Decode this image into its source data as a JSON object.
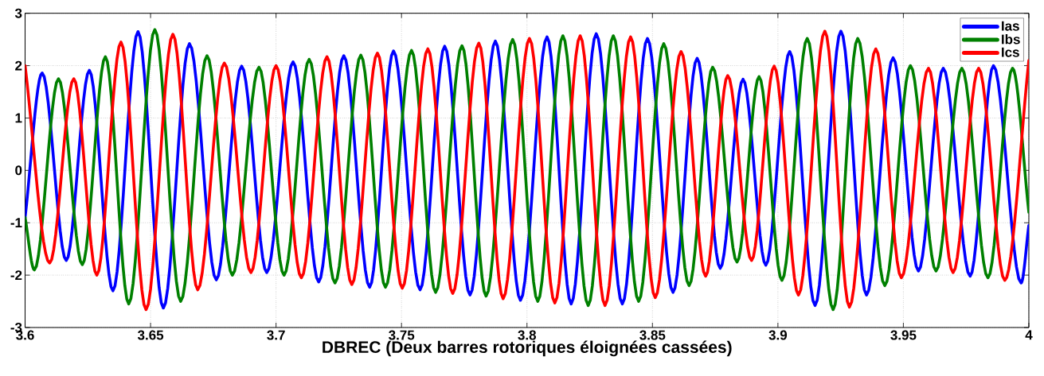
{
  "chart_data": {
    "type": "line",
    "xlabel": "DBREC (Deux barres rotoriques éloignées cassées)",
    "xlim": [
      3.6,
      4
    ],
    "ylim": [
      -3,
      3
    ],
    "xticks": [
      3.6,
      3.65,
      3.7,
      3.75,
      3.8,
      3.85,
      3.9,
      3.95,
      4
    ],
    "yticks": [
      -3,
      -2,
      -1,
      0,
      1,
      2,
      3
    ],
    "grid": true,
    "legend": "top right",
    "series": [
      {
        "name": "Ias",
        "color": "#0000ff",
        "x": [
          3.6,
          3.6068,
          3.6164,
          3.6256,
          3.635,
          3.645,
          3.6551,
          3.6655,
          3.6762,
          3.6863,
          3.6963,
          3.7068,
          3.717,
          3.727,
          3.7373,
          3.7468,
          3.7574,
          3.7672,
          3.7773,
          3.7874,
          3.7974,
          3.808,
          3.8176,
          3.8276,
          3.838,
          3.848,
          3.8582,
          3.8678,
          3.877,
          3.8861,
          3.8952,
          3.9047,
          3.9148,
          3.9251,
          3.9353,
          3.9459,
          3.956,
          3.9659,
          3.9766,
          3.9859,
          3.9969,
          4.0
        ],
        "values": [
          -0.9,
          1.86,
          -1.72,
          1.91,
          -2.3,
          2.65,
          -2.63,
          2.42,
          -2.09,
          1.99,
          -1.95,
          2.07,
          -2.13,
          2.19,
          -2.23,
          2.28,
          -2.28,
          2.37,
          -2.38,
          2.47,
          -2.48,
          2.55,
          -2.55,
          2.61,
          -2.55,
          2.52,
          -2.33,
          2.14,
          -1.87,
          1.74,
          -1.81,
          2.27,
          -2.58,
          2.66,
          -2.38,
          2.15,
          -1.92,
          1.95,
          -2.02,
          2.0,
          -2.15,
          -1.05
        ]
      },
      {
        "name": "Ibs",
        "color": "#008000",
        "x": [
          3.6,
          3.6037,
          3.6133,
          3.6228,
          3.632,
          3.6413,
          3.6517,
          3.662,
          3.6725,
          3.6826,
          3.6932,
          3.7032,
          3.7132,
          3.7235,
          3.7338,
          3.7436,
          3.754,
          3.7636,
          3.7741,
          3.7837,
          3.7943,
          3.8043,
          3.8143,
          3.8244,
          3.8344,
          3.8445,
          3.8545,
          3.8646,
          3.874,
          3.8837,
          3.8925,
          3.9016,
          3.9117,
          3.922,
          3.9318,
          3.9426,
          3.9528,
          3.963,
          3.9733,
          3.9837,
          3.9935,
          4.0
        ],
        "values": [
          -0.9,
          -1.9,
          1.75,
          -1.8,
          2.17,
          -2.55,
          2.69,
          -2.5,
          2.19,
          -2.0,
          1.97,
          -2.0,
          2.12,
          -2.15,
          2.2,
          -2.23,
          2.29,
          -2.33,
          2.38,
          -2.4,
          2.5,
          -2.5,
          2.57,
          -2.58,
          2.57,
          -2.5,
          2.42,
          -2.2,
          1.97,
          -1.75,
          1.79,
          -2.1,
          2.52,
          -2.66,
          2.52,
          -2.2,
          2.0,
          -1.92,
          1.95,
          -2.05,
          1.95,
          -0.8
        ]
      },
      {
        "name": "Ics",
        "color": "#ff0000",
        "x": [
          3.6,
          3.6098,
          3.6194,
          3.6286,
          3.6382,
          3.6482,
          3.6589,
          3.6688,
          3.6794,
          3.69,
          3.7,
          3.7101,
          3.7203,
          3.7302,
          3.7404,
          3.7503,
          3.7605,
          3.7704,
          3.7808,
          3.7905,
          3.801,
          3.8111,
          3.8212,
          3.8311,
          3.8413,
          3.8511,
          3.8614,
          3.8712,
          3.88,
          3.8895,
          3.8985,
          3.9082,
          3.9187,
          3.9285,
          3.939,
          3.9492,
          3.96,
          3.9698,
          3.98,
          3.9904,
          4.0
        ],
        "values": [
          2.0,
          -1.77,
          1.75,
          -2.0,
          2.45,
          -2.66,
          2.6,
          -2.28,
          2.05,
          -1.95,
          2.0,
          -2.05,
          2.17,
          -2.18,
          2.24,
          -2.25,
          2.32,
          -2.35,
          2.43,
          -2.45,
          2.52,
          -2.53,
          2.57,
          -2.58,
          2.55,
          -2.43,
          2.27,
          -2.02,
          1.81,
          -1.72,
          1.99,
          -2.38,
          2.66,
          -2.61,
          2.32,
          -2.05,
          1.95,
          -1.95,
          1.95,
          -2.1,
          2.1
        ]
      }
    ]
  }
}
